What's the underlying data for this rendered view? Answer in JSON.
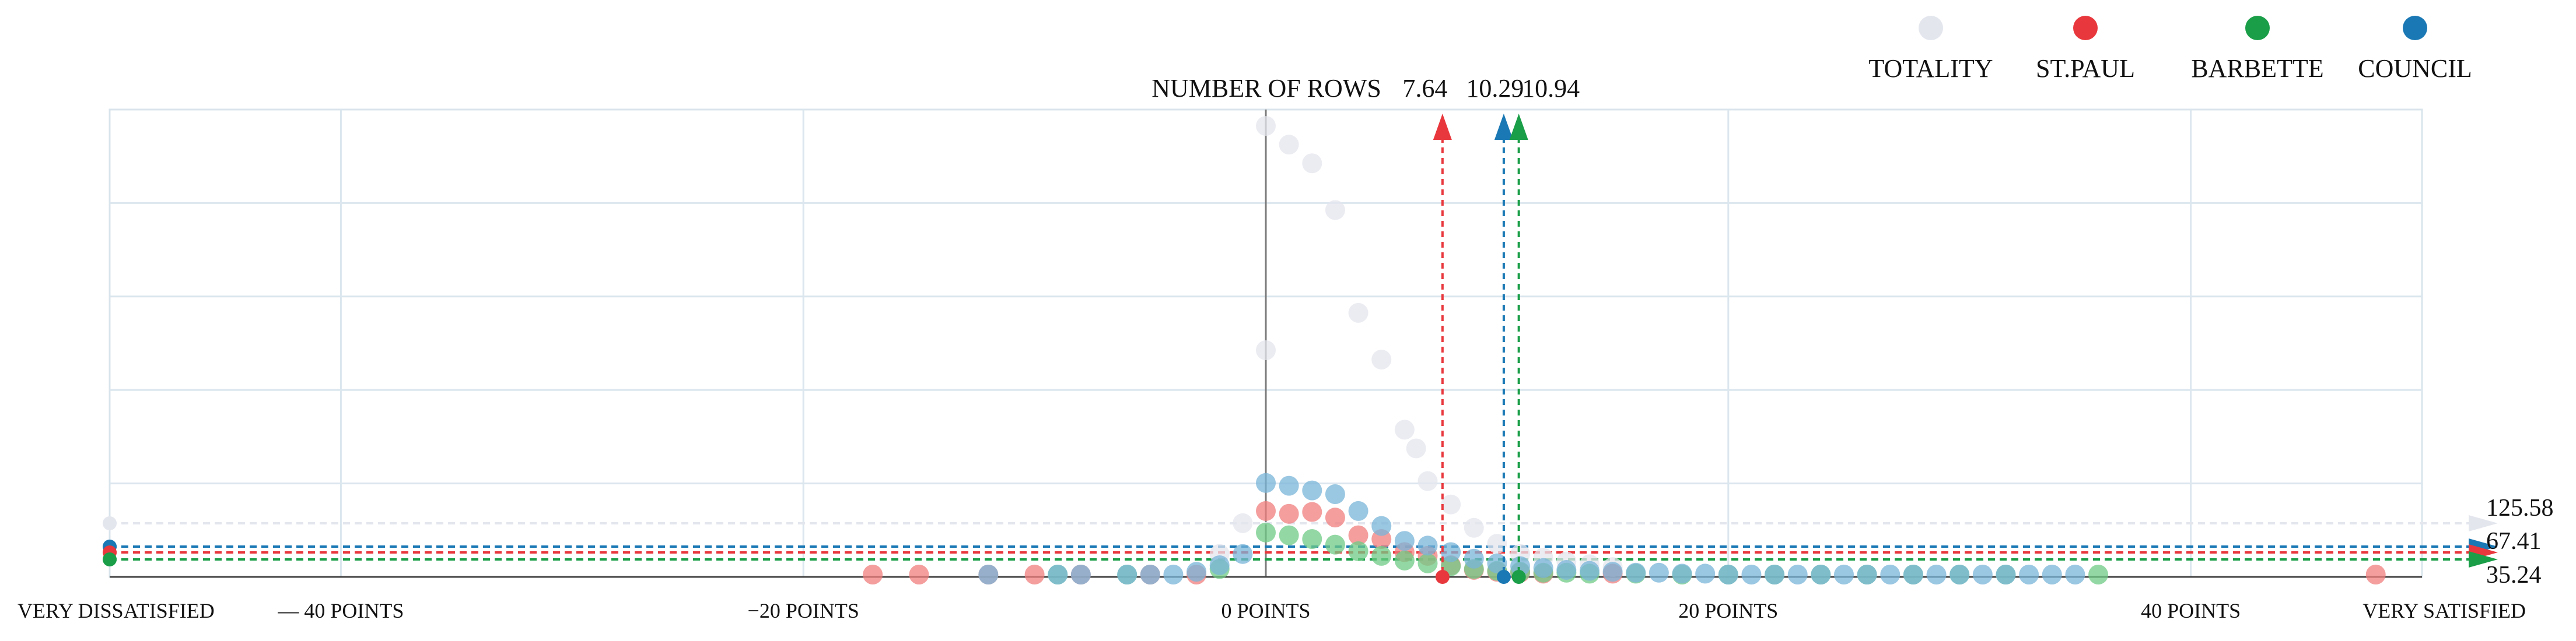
{
  "chart_data": {
    "type": "scatter",
    "title": "",
    "xlabel": "",
    "ylabel": "NUMBER OF ROWS",
    "xlim": [
      -50,
      50
    ],
    "ylim": [
      0,
      500
    ],
    "grid": true,
    "legend_position": "top-right",
    "x_ticks": [
      {
        "value": -50,
        "label": "VERY DISSATISFIED"
      },
      {
        "value": -40,
        "label": "— 40 POINTS"
      },
      {
        "value": -20,
        "label": "−20 POINTS"
      },
      {
        "value": 0,
        "label": "0 POINTS"
      },
      {
        "value": 20,
        "label": "20 POINTS"
      },
      {
        "value": 40,
        "label": "40 POINTS"
      },
      {
        "value": 50,
        "label": "VERY SATISFIED"
      }
    ],
    "series": [
      {
        "name": "TOTALITY",
        "color": "#e4e6ee",
        "points": [
          [
            -2,
            22
          ],
          [
            -1,
            55
          ],
          [
            0,
            240
          ],
          [
            0,
            480
          ],
          [
            1,
            460
          ],
          [
            2,
            440
          ],
          [
            3,
            390
          ],
          [
            4,
            280
          ],
          [
            5,
            230
          ],
          [
            6,
            155
          ],
          [
            6.5,
            135
          ],
          [
            7,
            100
          ],
          [
            8,
            75
          ],
          [
            9,
            50
          ],
          [
            10,
            33
          ],
          [
            11,
            22
          ],
          [
            12,
            18
          ],
          [
            13,
            14
          ],
          [
            14,
            11
          ],
          [
            15,
            8
          ]
        ]
      },
      {
        "name": "ST.PAUL",
        "color": "#f07d7d",
        "points": [
          [
            -17,
            0
          ],
          [
            -15,
            0
          ],
          [
            -12,
            0
          ],
          [
            -10,
            0
          ],
          [
            -8,
            0
          ],
          [
            -5,
            0
          ],
          [
            -3,
            0
          ],
          [
            0,
            68
          ],
          [
            1,
            65
          ],
          [
            2,
            67
          ],
          [
            3,
            61
          ],
          [
            4,
            42
          ],
          [
            5,
            38
          ],
          [
            6,
            24
          ],
          [
            7,
            20
          ],
          [
            8,
            10
          ],
          [
            9,
            5
          ],
          [
            10,
            3
          ],
          [
            11,
            2
          ],
          [
            12,
            1
          ],
          [
            15,
            1
          ],
          [
            48,
            0
          ]
        ]
      },
      {
        "name": "BARBETTE",
        "color": "#6fcb86",
        "points": [
          [
            -9,
            0
          ],
          [
            -6,
            0
          ],
          [
            -2,
            6
          ],
          [
            0,
            45
          ],
          [
            1,
            42
          ],
          [
            2,
            38
          ],
          [
            3,
            32
          ],
          [
            4,
            25
          ],
          [
            5,
            20
          ],
          [
            6,
            15
          ],
          [
            7,
            12
          ],
          [
            8,
            9
          ],
          [
            9,
            6
          ],
          [
            10,
            4
          ],
          [
            11,
            3
          ],
          [
            12,
            2
          ],
          [
            13,
            2
          ],
          [
            14,
            1
          ],
          [
            16,
            1
          ],
          [
            18,
            0
          ],
          [
            20,
            0
          ],
          [
            22,
            0
          ],
          [
            24,
            0
          ],
          [
            26,
            0
          ],
          [
            28,
            0
          ],
          [
            30,
            0
          ],
          [
            32,
            0
          ],
          [
            36,
            0
          ]
        ]
      },
      {
        "name": "COUNCIL",
        "color": "#78b4d8",
        "points": [
          [
            -12,
            0
          ],
          [
            -9,
            0
          ],
          [
            -8,
            0
          ],
          [
            -6,
            0
          ],
          [
            -5,
            0
          ],
          [
            -4,
            0
          ],
          [
            -3,
            3
          ],
          [
            -2,
            10
          ],
          [
            -1,
            22
          ],
          [
            0,
            98
          ],
          [
            1,
            95
          ],
          [
            2,
            90
          ],
          [
            3,
            86
          ],
          [
            4,
            68
          ],
          [
            5,
            52
          ],
          [
            6,
            36
          ],
          [
            7,
            31
          ],
          [
            8,
            24
          ],
          [
            9,
            17
          ],
          [
            10,
            12
          ],
          [
            11,
            9
          ],
          [
            12,
            7
          ],
          [
            13,
            5
          ],
          [
            14,
            4
          ],
          [
            15,
            3
          ],
          [
            16,
            2
          ],
          [
            17,
            2
          ],
          [
            18,
            1
          ],
          [
            19,
            1
          ],
          [
            20,
            0
          ],
          [
            21,
            0
          ],
          [
            22,
            0
          ],
          [
            23,
            0
          ],
          [
            24,
            0
          ],
          [
            25,
            0
          ],
          [
            26,
            0
          ],
          [
            27,
            0
          ],
          [
            28,
            0
          ],
          [
            29,
            0
          ],
          [
            30,
            0
          ],
          [
            31,
            0
          ],
          [
            32,
            0
          ],
          [
            33,
            0
          ],
          [
            34,
            0
          ],
          [
            35,
            0
          ]
        ]
      }
    ],
    "means": [
      {
        "series": "ST.PAUL",
        "value": 7.64,
        "label": "7.64",
        "color": "#e8383d"
      },
      {
        "series": "COUNCIL",
        "value": 10.29,
        "label": "10.29",
        "color": "#1a78b4"
      },
      {
        "series": "BARBETTE",
        "value": 10.94,
        "label": "10.94",
        "color": "#1a9e48"
      }
    ],
    "row_counts": [
      {
        "series": "TOTALITY",
        "value": 125.58,
        "label": "125.58",
        "color": "#e4e6ee"
      },
      {
        "series": "COUNCIL",
        "value": 67.41,
        "label": "67.41",
        "color": "#1a78b4"
      },
      {
        "series": "ST.PAUL",
        "value": 45,
        "label": "",
        "color": "#e8383d"
      },
      {
        "series": "BARBETTE",
        "value": 35.24,
        "label": "35.24",
        "color": "#1a9e48"
      }
    ],
    "legend": [
      {
        "name": "TOTALITY",
        "color": "#e4e6ee"
      },
      {
        "name": "ST.PAUL",
        "color": "#e8383d"
      },
      {
        "name": "BARBETTE",
        "color": "#1a9e48"
      },
      {
        "name": "COUNCIL",
        "color": "#1a78b4"
      }
    ]
  }
}
